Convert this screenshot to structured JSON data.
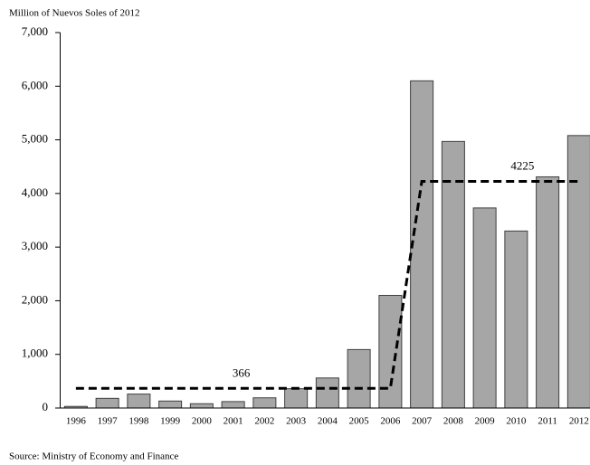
{
  "chart_data": {
    "type": "bar",
    "title": "Million of Nuevos Soles of 2012",
    "source": "Source: Ministry of Economy and Finance",
    "categories": [
      "1996",
      "1997",
      "1998",
      "1999",
      "2000",
      "2001",
      "2002",
      "2003",
      "2004",
      "2005",
      "2006",
      "2007",
      "2008",
      "2009",
      "2010",
      "2011",
      "2012"
    ],
    "values": [
      30,
      180,
      260,
      130,
      80,
      120,
      190,
      360,
      560,
      1090,
      2100,
      6100,
      4970,
      3730,
      3300,
      4310,
      5080
    ],
    "color": "#a6a6a6",
    "line": {
      "values": [
        366,
        366,
        366,
        366,
        366,
        366,
        366,
        366,
        366,
        366,
        366,
        4225,
        4225,
        4225,
        4225,
        4225,
        4225
      ],
      "color": "#000000",
      "dashed": true
    },
    "ylim": [
      0,
      7000
    ],
    "yticks": [
      0,
      {
        "value": 1000,
        "label": "1,000"
      },
      {
        "value": 2000,
        "label": "2,000"
      },
      {
        "value": 3000,
        "label": "3,000"
      },
      {
        "value": 4000,
        "label": "4,000"
      },
      {
        "value": 5000,
        "label": "5,000"
      },
      {
        "value": 6000,
        "label": "6,000"
      },
      {
        "value": 7000,
        "label": "7,000"
      }
    ],
    "grid": false
  }
}
